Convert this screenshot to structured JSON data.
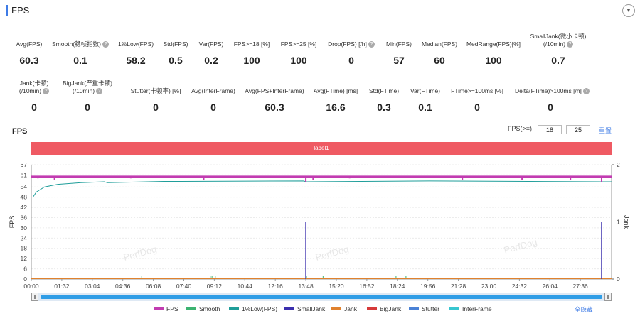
{
  "header": {
    "title": "FPS",
    "collapse_icon": "▼"
  },
  "metrics_row1": [
    {
      "label": "Avg(FPS)",
      "value": "60.3",
      "help": false
    },
    {
      "label": "Smooth(稳帧指数)",
      "value": "0.1",
      "help": true
    },
    {
      "label": "1%Low(FPS)",
      "value": "58.2",
      "help": false
    },
    {
      "label": "Std(FPS)",
      "value": "0.5",
      "help": false
    },
    {
      "label": "Var(FPS)",
      "value": "0.2",
      "help": false
    },
    {
      "label": "FPS>=18 [%]",
      "value": "100",
      "help": false
    },
    {
      "label": "FPS>=25 [%]",
      "value": "100",
      "help": false
    },
    {
      "label": "Drop(FPS) [/h]",
      "value": "0",
      "help": true
    },
    {
      "label": "Min(FPS)",
      "value": "57",
      "help": false
    },
    {
      "label": "Median(FPS)",
      "value": "60",
      "help": false
    },
    {
      "label": "MedRange(FPS)[%]",
      "value": "100",
      "help": false
    },
    {
      "label": "SmallJank(微小卡顿)",
      "label2": "(/10min)",
      "value": "0.7",
      "help": true
    }
  ],
  "metrics_row2": [
    {
      "label": "Jank(卡顿)",
      "label2": "(/10min)",
      "value": "0",
      "help": true
    },
    {
      "label": "BigJank(严重卡顿)",
      "label2": "(/10min)",
      "value": "0",
      "help": true
    },
    {
      "label": "Stutter(卡顿率) [%]",
      "value": "0",
      "help": false
    },
    {
      "label": "Avg(InterFrame)",
      "value": "0",
      "help": false
    },
    {
      "label": "Avg(FPS+InterFrame)",
      "value": "60.3",
      "help": false
    },
    {
      "label": "Avg(FTime) [ms]",
      "value": "16.6",
      "help": false
    },
    {
      "label": "Std(FTime)",
      "value": "0.3",
      "help": false
    },
    {
      "label": "Var(FTime)",
      "value": "0.1",
      "help": false
    },
    {
      "label": "FTime>=100ms [%]",
      "value": "0",
      "help": false
    },
    {
      "label": "Delta(FTime)>100ms [/h]",
      "value": "0",
      "help": true
    }
  ],
  "chart_section": {
    "title": "FPS",
    "fps_threshold_label": "FPS(>=)",
    "threshold_1": "18",
    "threshold_2": "25",
    "reset_label": "重置",
    "label_band": "label1",
    "hide_all_label": "全隐藏"
  },
  "chart_data": {
    "type": "line",
    "ylabel": "FPS",
    "ylabel_right": "Jank",
    "y_ticks": [
      "0",
      "6",
      "12",
      "18",
      "24",
      "30",
      "36",
      "42",
      "48",
      "54",
      "61",
      "67"
    ],
    "y_right_ticks": [
      "0",
      "1",
      "2"
    ],
    "x_ticks": [
      "00:00",
      "01:32",
      "03:04",
      "04:36",
      "06:08",
      "07:40",
      "09:12",
      "10:44",
      "12:16",
      "13:48",
      "15:20",
      "16:52",
      "18:24",
      "19:56",
      "21:28",
      "23:00",
      "24:32",
      "26:04",
      "27:36"
    ],
    "ylim": [
      0,
      67
    ],
    "y_right_lim": [
      0,
      2
    ],
    "xlim_seconds": [
      0,
      1750
    ],
    "series": [
      {
        "name": "FPS",
        "color": "#c23cb1",
        "points": [
          [
            0,
            60
          ],
          [
            400,
            60
          ],
          [
            800,
            60
          ],
          [
            1200,
            60
          ],
          [
            1600,
            60
          ],
          [
            1750,
            60
          ]
        ],
        "dips": [
          [
            20,
            59
          ],
          [
            70,
            58
          ],
          [
            300,
            59
          ],
          [
            520,
            58
          ],
          [
            828,
            57
          ],
          [
            850,
            58
          ],
          [
            960,
            59
          ],
          [
            1300,
            58
          ],
          [
            1480,
            58
          ],
          [
            1626,
            58
          ],
          [
            1720,
            57
          ]
        ]
      },
      {
        "name": "Smooth",
        "color": "#3cb371",
        "spikes": [
          [
            333,
            1
          ],
          [
            540,
            1
          ],
          [
            545,
            1
          ],
          [
            555,
            1
          ],
          [
            830,
            1
          ],
          [
            880,
            1
          ],
          [
            1100,
            1
          ],
          [
            1130,
            1
          ],
          [
            1350,
            1
          ],
          [
            1720,
            1
          ]
        ]
      },
      {
        "name": "1%Low(FPS)",
        "color": "#1f9e9a",
        "points": [
          [
            5,
            48
          ],
          [
            15,
            51
          ],
          [
            40,
            54
          ],
          [
            80,
            55.5
          ],
          [
            150,
            56.5
          ],
          [
            220,
            57
          ],
          [
            230,
            56.5
          ],
          [
            400,
            57.2
          ],
          [
            820,
            57.5
          ],
          [
            830,
            57
          ],
          [
            1200,
            57.5
          ],
          [
            1500,
            57.2
          ],
          [
            1720,
            57
          ],
          [
            1750,
            57
          ]
        ]
      },
      {
        "name": "SmallJank",
        "color": "#3b2fae",
        "spikes_right": [
          [
            828,
            1
          ],
          [
            1720,
            1
          ]
        ]
      },
      {
        "name": "Jank",
        "color": "#e0822e"
      },
      {
        "name": "BigJank",
        "color": "#d63a3a"
      },
      {
        "name": "Stutter",
        "color": "#4a82d6"
      },
      {
        "name": "InterFrame",
        "color": "#37c6d0"
      }
    ]
  }
}
